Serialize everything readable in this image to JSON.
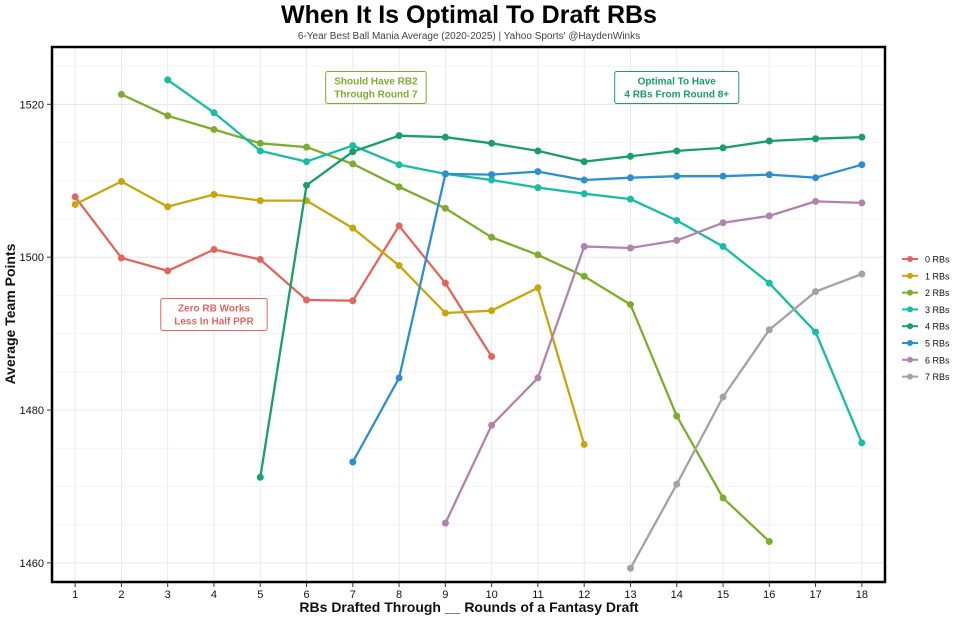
{
  "chart_data": {
    "type": "line",
    "title": "When It Is Optimal To Draft RBs",
    "subtitle": "6-Year Best Ball Mania Average (2020-2025) | Yahoo Sports' @HaydenWinks",
    "xlabel": "RBs Drafted Through __ Rounds of a Fantasy Draft",
    "ylabel": "Average Team Points",
    "x_ticks": [
      1,
      2,
      3,
      4,
      5,
      6,
      7,
      8,
      9,
      10,
      11,
      12,
      13,
      14,
      15,
      16,
      17,
      18
    ],
    "y_ticks": [
      1460,
      1480,
      1500,
      1520
    ],
    "xlim": [
      0.5,
      18.5
    ],
    "ylim": [
      1457.5,
      1527.5
    ],
    "grid": true,
    "legend_position": "right",
    "series": [
      {
        "name": "0 RBs",
        "color": "#E0675F",
        "x": [
          1,
          2,
          3,
          4,
          5,
          6,
          7,
          8,
          9,
          10
        ],
        "values": [
          1507.9,
          1499.9,
          1498.2,
          1501.0,
          1499.7,
          1494.4,
          1494.3,
          1504.1,
          1496.6,
          1487.0
        ]
      },
      {
        "name": "1 RBs",
        "color": "#C9A50E",
        "x": [
          1,
          2,
          3,
          4,
          5,
          6,
          7,
          8,
          9,
          10,
          11,
          12
        ],
        "values": [
          1506.9,
          1509.9,
          1506.6,
          1508.2,
          1507.4,
          1507.4,
          1503.8,
          1498.9,
          1492.7,
          1493.0,
          1496.0,
          1475.5
        ]
      },
      {
        "name": "2 RBs",
        "color": "#7EAD2E",
        "x": [
          2,
          3,
          4,
          5,
          6,
          7,
          8,
          9,
          10,
          11,
          12,
          13,
          14,
          15,
          16
        ],
        "values": [
          1521.3,
          1518.5,
          1516.7,
          1514.9,
          1514.4,
          1512.2,
          1509.2,
          1506.4,
          1502.6,
          1500.3,
          1497.5,
          1493.8,
          1479.2,
          1468.5,
          1462.8
        ]
      },
      {
        "name": "3 RBs",
        "color": "#17BDA6",
        "x": [
          3,
          4,
          5,
          6,
          7,
          8,
          9,
          10,
          11,
          12,
          13,
          14,
          15,
          16,
          17,
          18
        ],
        "values": [
          1523.2,
          1518.9,
          1513.9,
          1512.5,
          1514.6,
          1512.1,
          1510.9,
          1510.1,
          1509.1,
          1508.3,
          1507.6,
          1504.8,
          1501.4,
          1496.6,
          1490.2,
          1475.7
        ]
      },
      {
        "name": "4 RBs",
        "color": "#1A9E6A",
        "x": [
          5,
          6,
          7,
          8,
          9,
          10,
          11,
          12,
          13,
          14,
          15,
          16,
          17,
          18
        ],
        "values": [
          1471.2,
          1509.4,
          1513.8,
          1515.9,
          1515.7,
          1514.9,
          1513.9,
          1512.5,
          1513.2,
          1513.9,
          1514.3,
          1515.2,
          1515.5,
          1515.7
        ]
      },
      {
        "name": "5 RBs",
        "color": "#2E8FD0",
        "x": [
          7,
          8,
          9,
          10,
          11,
          12,
          13,
          14,
          15,
          16,
          17,
          18
        ],
        "values": [
          1473.2,
          1484.2,
          1510.9,
          1510.8,
          1511.2,
          1510.1,
          1510.4,
          1510.6,
          1510.6,
          1510.8,
          1510.4,
          1512.1
        ]
      },
      {
        "name": "6 RBs",
        "color": "#B184AD",
        "x": [
          9,
          10,
          11,
          12,
          13,
          14,
          15,
          16,
          17,
          18
        ],
        "values": [
          1465.2,
          1478.0,
          1484.2,
          1501.4,
          1501.2,
          1502.2,
          1504.5,
          1505.4,
          1507.3,
          1507.1
        ]
      },
      {
        "name": "7 RBs",
        "color": "#A3A3A3",
        "x": [
          13,
          14,
          15,
          16,
          17,
          18
        ],
        "values": [
          1459.3,
          1470.3,
          1481.7,
          1490.5,
          1495.5,
          1497.8
        ]
      }
    ],
    "annotations": [
      {
        "lines": [
          "Should Have RB2",
          "Through Round 7"
        ],
        "color": "#7EAD2E",
        "x": 7.5,
        "y": 1522.2
      },
      {
        "lines": [
          "Optimal To Have",
          "4 RBs From Round 8+"
        ],
        "color": "#1A9E6A",
        "x": 14.0,
        "y": 1522.2
      },
      {
        "lines": [
          "Zero RB Works",
          "Less In Half PPR"
        ],
        "color": "#E0675F",
        "x": 4.0,
        "y": 1492.5
      }
    ]
  }
}
